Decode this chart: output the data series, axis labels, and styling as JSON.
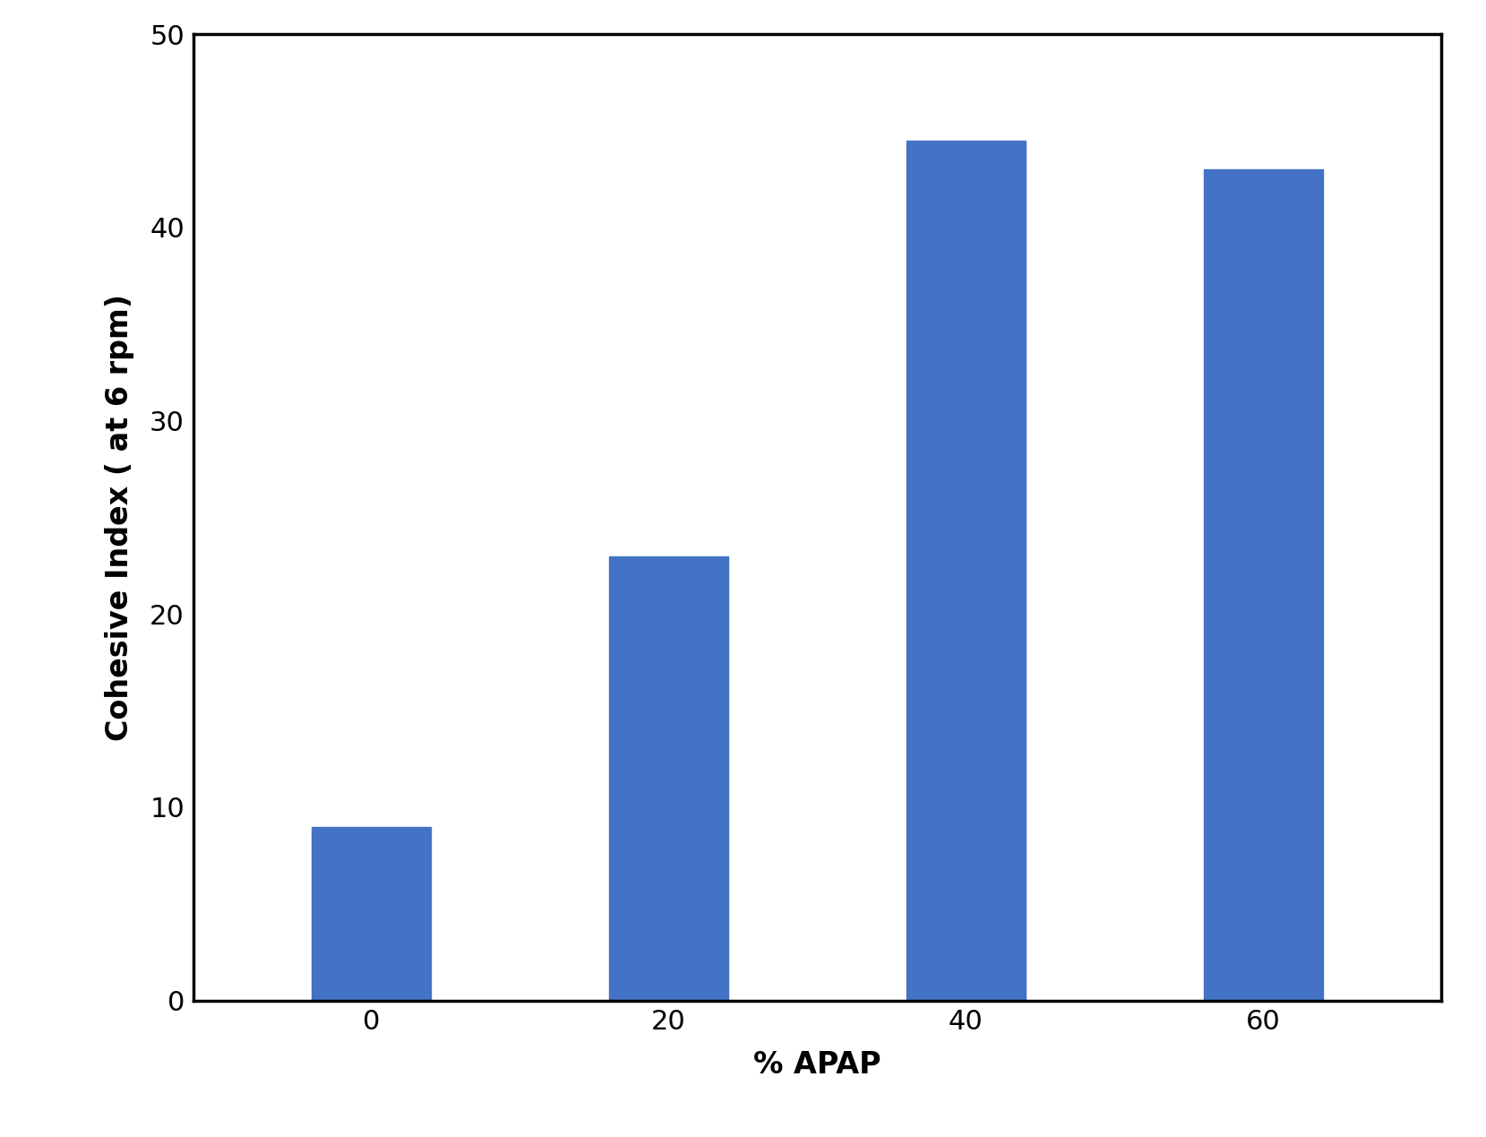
{
  "categories": [
    "0",
    "20",
    "40",
    "60"
  ],
  "values": [
    9.0,
    23.0,
    44.5,
    43.0
  ],
  "bar_color": "#4472C4",
  "bar_width": 0.4,
  "xlabel": "% APAP",
  "ylabel": "Cohesive Index ( at 6 rpm)",
  "ylim": [
    0,
    50
  ],
  "yticks": [
    0,
    10,
    20,
    30,
    40,
    50
  ],
  "xlabel_fontsize": 24,
  "ylabel_fontsize": 24,
  "tick_fontsize": 22,
  "background_color": "#ffffff",
  "spine_linewidth": 2.5,
  "figure_width": 16.59,
  "figure_height": 12.69,
  "dpi": 100
}
